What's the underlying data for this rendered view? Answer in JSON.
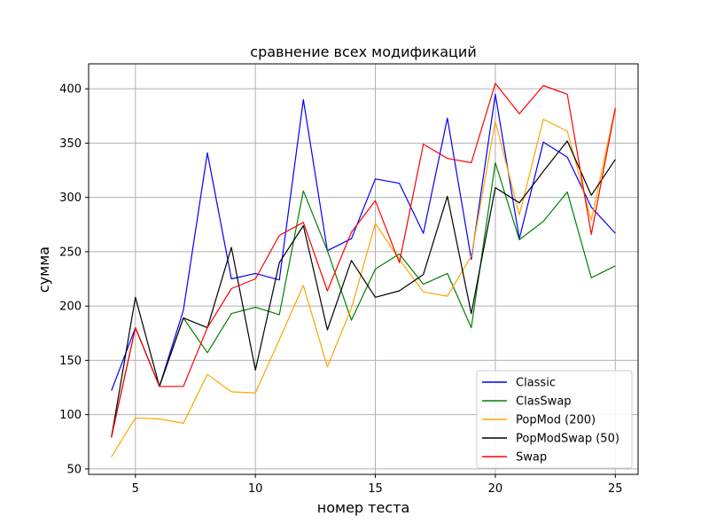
{
  "chart_data": {
    "type": "line",
    "title": "сравнение всех модификаций",
    "xlabel": "номер теста",
    "ylabel": "сумма",
    "xlim": [
      3.05,
      25.95
    ],
    "ylim": [
      45,
      423
    ],
    "grid": true,
    "legend_placement": "lower-right",
    "xticks": [
      5,
      10,
      15,
      20,
      25
    ],
    "yticks": [
      50,
      100,
      150,
      200,
      250,
      300,
      350,
      400
    ],
    "x": [
      4,
      5,
      6,
      7,
      8,
      9,
      10,
      11,
      12,
      13,
      14,
      15,
      16,
      17,
      18,
      19,
      20,
      21,
      22,
      23,
      24,
      25
    ],
    "series": [
      {
        "name": "Classic",
        "color": "#0000ff",
        "values": [
          122,
          180,
          126,
          196,
          341,
          225,
          230,
          224,
          390,
          251,
          262,
          317,
          313,
          267,
          373,
          243,
          395,
          262,
          351,
          337,
          291,
          267
        ]
      },
      {
        "name": "ClasSwap",
        "color": "#008000",
        "values": [
          80,
          180,
          126,
          189,
          157,
          193,
          199,
          192,
          306,
          251,
          187,
          234,
          248,
          220,
          230,
          180,
          332,
          261,
          278,
          305,
          226,
          237
        ]
      },
      {
        "name": "PopMod (200)",
        "color": "#ffa500",
        "values": [
          61,
          97,
          96,
          92,
          137,
          121,
          120,
          169,
          219,
          144,
          198,
          276,
          243,
          213,
          209,
          246,
          370,
          284,
          372,
          361,
          279,
          383
        ]
      },
      {
        "name": "PopModSwap (50)",
        "color": "#000000",
        "values": [
          79,
          208,
          126,
          189,
          180,
          254,
          141,
          240,
          274,
          178,
          242,
          208,
          214,
          229,
          301,
          193,
          309,
          295,
          324,
          352,
          302,
          335
        ]
      },
      {
        "name": "Swap",
        "color": "#ff0000",
        "values": [
          79,
          180,
          126,
          126,
          180,
          216,
          225,
          265,
          277,
          214,
          268,
          297,
          240,
          349,
          336,
          332,
          405,
          377,
          403,
          395,
          266,
          382
        ]
      }
    ]
  }
}
